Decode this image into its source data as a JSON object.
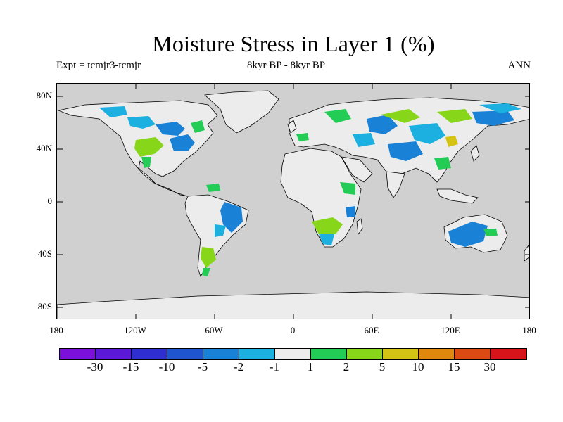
{
  "title": "Moisture Stress in Layer 1 (%)",
  "subtitle_left": "Expt = tcmjr3-tcmjr",
  "subtitle_center": "8kyr BP - 8kyr BP",
  "subtitle_right": "ANN",
  "lat_labels": [
    "80N",
    "40N",
    "0",
    "40S",
    "80S"
  ],
  "lon_labels": [
    "180",
    "120W",
    "60W",
    "0",
    "60E",
    "120E",
    "180"
  ],
  "colorbar": {
    "colors": [
      "#7a10d9",
      "#5b18d6",
      "#2f2ed0",
      "#1f55cf",
      "#1a82d6",
      "#1bb0df",
      "#ececec",
      "#22cc55",
      "#88d61a",
      "#d4c314",
      "#e0880e",
      "#dc4a14",
      "#d6141a"
    ],
    "labels": [
      "-30",
      "-15",
      "-10",
      "-5",
      "-2",
      "-1",
      "1",
      "2",
      "5",
      "10",
      "15",
      "30"
    ]
  },
  "colors": {
    "ocean": "#d0d0d0",
    "land_neutral": "#ececec",
    "coast": "#000000"
  }
}
